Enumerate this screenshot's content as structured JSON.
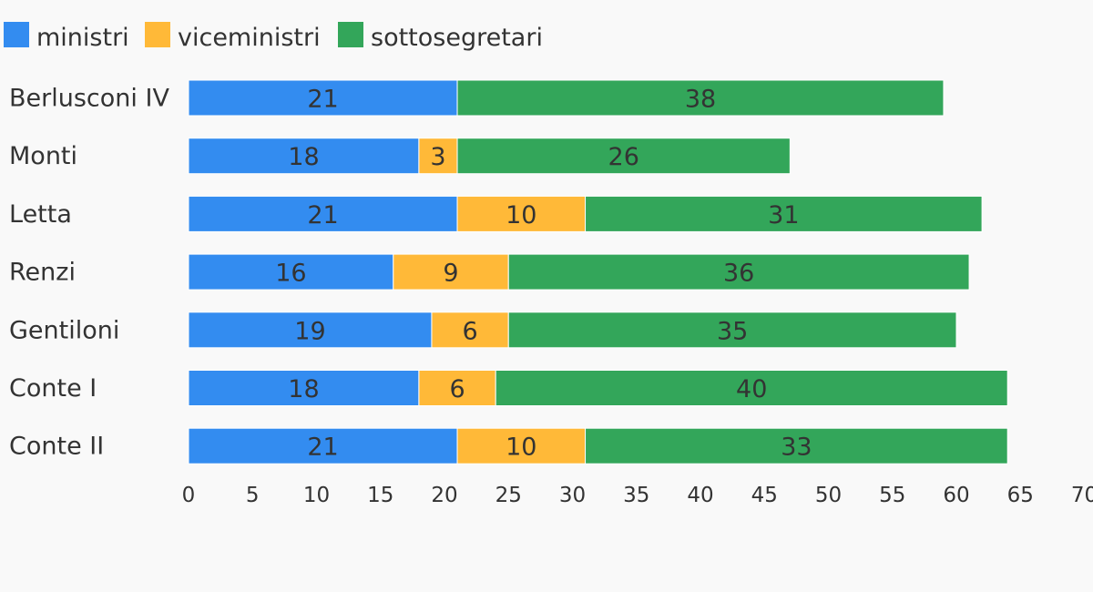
{
  "chart_data": {
    "type": "bar",
    "orientation": "horizontal",
    "stacked": true,
    "categories": [
      "Berlusconi IV",
      "Monti",
      "Letta",
      "Renzi",
      "Gentiloni",
      "Conte I",
      "Conte II"
    ],
    "series": [
      {
        "name": "ministri",
        "color": "#338cf0",
        "values": [
          21,
          18,
          21,
          16,
          19,
          18,
          21
        ]
      },
      {
        "name": "viceministri",
        "color": "#ffb938",
        "values": [
          0,
          3,
          10,
          9,
          6,
          6,
          10
        ]
      },
      {
        "name": "sottosegretari",
        "color": "#33a65a",
        "values": [
          38,
          26,
          31,
          36,
          35,
          40,
          33
        ]
      }
    ],
    "xlim": [
      0,
      70
    ],
    "xticks": [
      0,
      5,
      10,
      15,
      20,
      25,
      30,
      35,
      40,
      45,
      50,
      55,
      60,
      65,
      70
    ],
    "grid": false,
    "legend_position": "top-left",
    "data_labels": true
  }
}
